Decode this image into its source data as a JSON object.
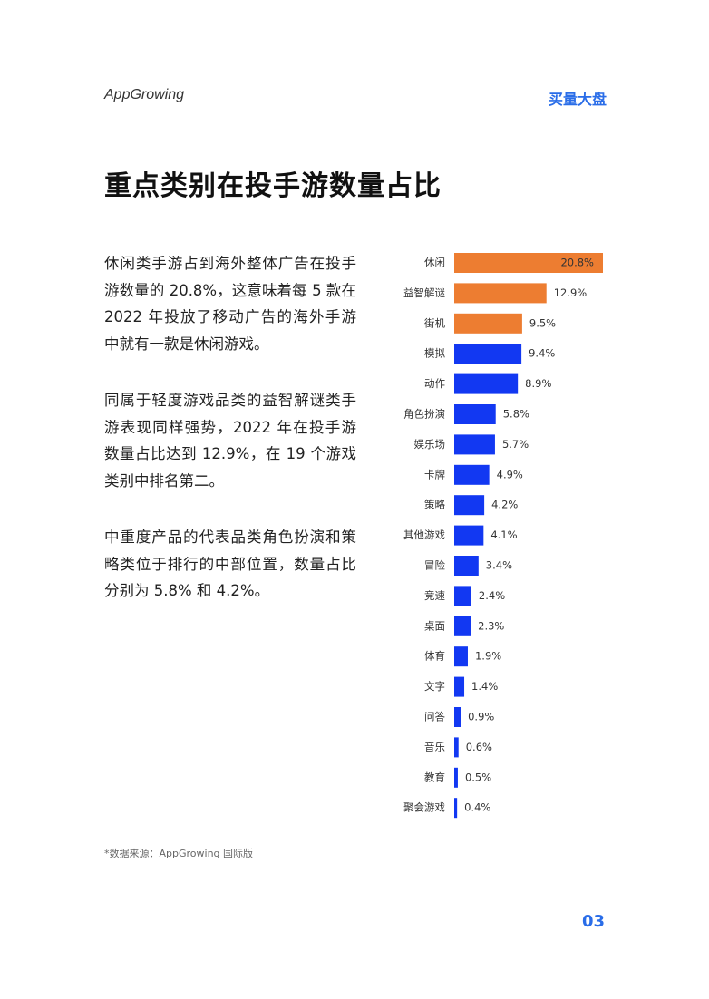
{
  "header": {
    "logo": "AppGrowing",
    "section": "买量大盘"
  },
  "title": "重点类别在投手游数量占比",
  "paragraphs": [
    "休闲类手游占到海外整体广告在投手游数量的 20.8%，这意味着每 5 款在 2022 年投放了移动广告的海外手游中就有一款是休闲游戏。",
    "同属于轻度游戏品类的益智解谜类手游表现同样强势，2022 年在投手游数量占比达到 12.9%，在 19 个游戏类别中排名第二。",
    "中重度产品的代表品类角色扮演和策略类位于排行的中部位置，数量占比分别为 5.8% 和 4.2%。"
  ],
  "chart_data": {
    "type": "barh",
    "categories": [
      "休闲",
      "益智解谜",
      "街机",
      "模拟",
      "动作",
      "角色扮演",
      "娱乐场",
      "卡牌",
      "策略",
      "其他游戏",
      "冒险",
      "竞速",
      "桌面",
      "体育",
      "文字",
      "问答",
      "音乐",
      "教育",
      "聚会游戏"
    ],
    "values": [
      20.8,
      12.9,
      9.5,
      9.4,
      8.9,
      5.8,
      5.7,
      4.9,
      4.2,
      4.1,
      3.4,
      2.4,
      2.3,
      1.9,
      1.4,
      0.9,
      0.6,
      0.5,
      0.4
    ],
    "value_labels": [
      "20.8%",
      "12.9%",
      "9.5%",
      "9.4%",
      "8.9%",
      "5.8%",
      "5.7%",
      "4.9%",
      "4.2%",
      "4.1%",
      "3.4%",
      "2.4%",
      "2.3%",
      "1.9%",
      "1.4%",
      "0.9%",
      "0.6%",
      "0.5%",
      "0.4%"
    ],
    "colors": [
      "#ed7d31",
      "#ed7d31",
      "#ed7d31",
      "#1238f2",
      "#1238f2",
      "#1238f2",
      "#1238f2",
      "#1238f2",
      "#1238f2",
      "#1238f2",
      "#1238f2",
      "#1238f2",
      "#1238f2",
      "#1238f2",
      "#1238f2",
      "#1238f2",
      "#1238f2",
      "#1238f2",
      "#1238f2"
    ]
  },
  "footnote": "*数据来源：AppGrowing 国际版",
  "page_number": "03"
}
